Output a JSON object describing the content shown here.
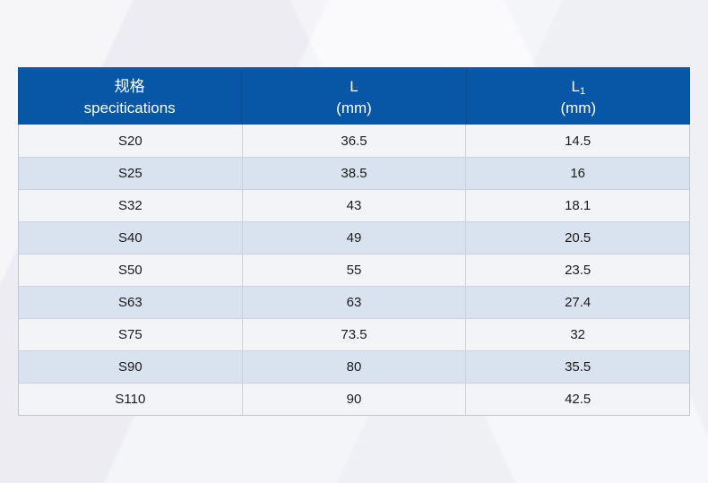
{
  "page": {
    "background_color": "#f1f2f6"
  },
  "table": {
    "header": {
      "background_color": "#0857a7",
      "top_strip_color": "#24538f",
      "text_color": "#ffffff",
      "spec": {
        "line1": "规格",
        "line2": "specitications"
      },
      "l": {
        "line1": "L",
        "line2": "(mm)"
      },
      "l1": {
        "base": "L",
        "sub": "1",
        "line2": "(mm)"
      }
    },
    "row_colors": {
      "odd": "#f2f4f8",
      "even": "#d9e3ef"
    },
    "border_color": "#cdd1d9",
    "rows": [
      {
        "spec": "S20",
        "l": "36.5",
        "l1": "14.5"
      },
      {
        "spec": "S25",
        "l": "38.5",
        "l1": "16"
      },
      {
        "spec": "S32",
        "l": "43",
        "l1": "18.1"
      },
      {
        "spec": "S40",
        "l": "49",
        "l1": "20.5"
      },
      {
        "spec": "S50",
        "l": "55",
        "l1": "23.5"
      },
      {
        "spec": "S63",
        "l": "63",
        "l1": "27.4"
      },
      {
        "spec": "S75",
        "l": "73.5",
        "l1": "32"
      },
      {
        "spec": "S90",
        "l": "80",
        "l1": "35.5"
      },
      {
        "spec": "S110",
        "l": "90",
        "l1": "42.5"
      }
    ]
  },
  "chart_data": {
    "type": "table",
    "title": "",
    "columns": [
      "规格 specitications",
      "L (mm)",
      "L1 (mm)"
    ],
    "rows": [
      [
        "S20",
        36.5,
        14.5
      ],
      [
        "S25",
        38.5,
        16
      ],
      [
        "S32",
        43,
        18.1
      ],
      [
        "S40",
        49,
        20.5
      ],
      [
        "S50",
        55,
        23.5
      ],
      [
        "S63",
        63,
        27.4
      ],
      [
        "S75",
        73.5,
        32
      ],
      [
        "S90",
        80,
        35.5
      ],
      [
        "S110",
        90,
        42.5
      ]
    ]
  }
}
